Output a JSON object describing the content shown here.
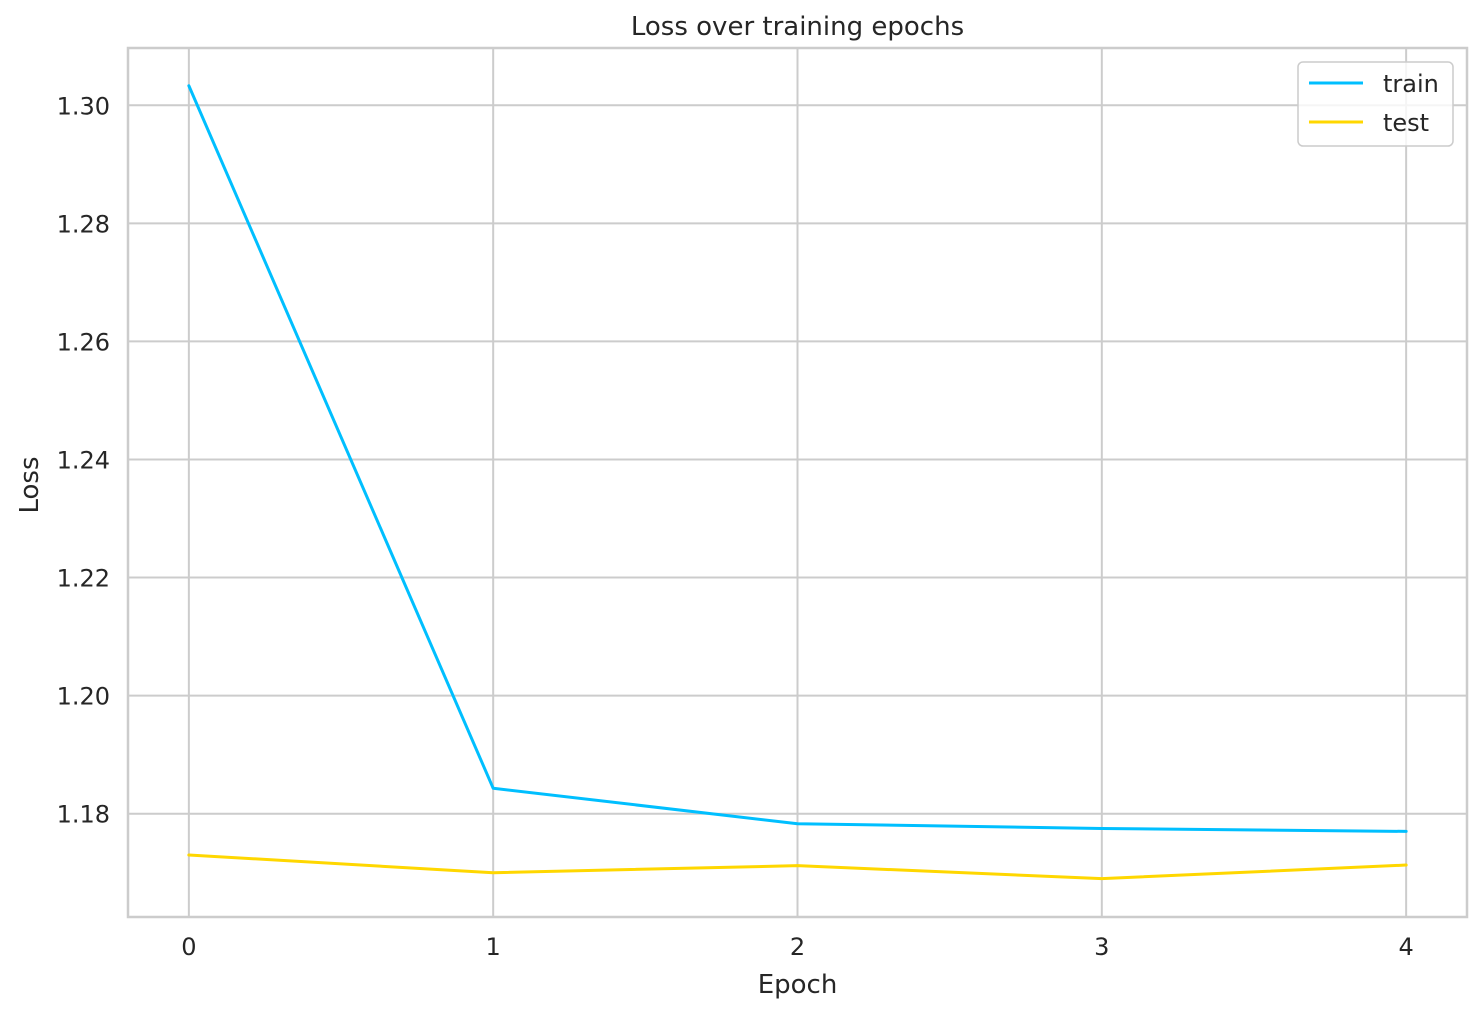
{
  "chart_data": {
    "type": "line",
    "title": "Loss over training epochs",
    "xlabel": "Epoch",
    "ylabel": "Loss",
    "x": [
      0,
      1,
      2,
      3,
      4
    ],
    "xticks": [
      "0",
      "1",
      "2",
      "3",
      "4"
    ],
    "yticks": [
      "1.18",
      "1.20",
      "1.22",
      "1.24",
      "1.26",
      "1.28",
      "1.30"
    ],
    "ytick_values": [
      1.18,
      1.2,
      1.22,
      1.24,
      1.26,
      1.28,
      1.3
    ],
    "xlim": [
      -0.2,
      4.2
    ],
    "ylim": [
      1.1625,
      1.3097
    ],
    "grid": true,
    "legend_position": "top-right",
    "series": [
      {
        "name": "train",
        "color": "#00bfff",
        "values": [
          1.3033,
          1.1843,
          1.1783,
          1.1775,
          1.177
        ]
      },
      {
        "name": "test",
        "color": "#ffd700",
        "values": [
          1.173,
          1.17,
          1.1712,
          1.169,
          1.1713
        ]
      }
    ]
  }
}
